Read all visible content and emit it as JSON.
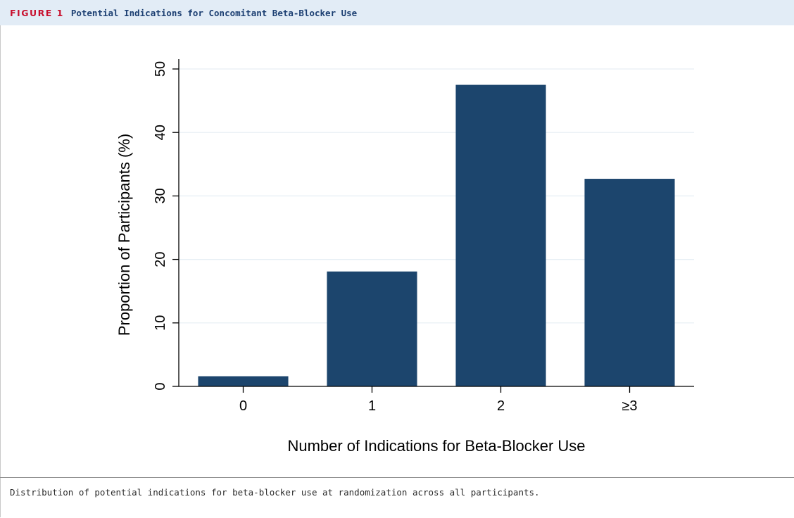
{
  "figure": {
    "label": "FIGURE 1",
    "title": "Potential Indications for Concomitant Beta-Blocker Use",
    "caption": "Distribution of potential indications for beta-blocker use at randomization across all participants."
  },
  "colors": {
    "header_bg": "#e2ecf6",
    "label_red": "#c8102e",
    "title_blue": "#1c3f72",
    "bar": "#1c456d",
    "grid": "#e6eef4"
  },
  "chart_data": {
    "type": "bar",
    "categories": [
      "0",
      "1",
      "2",
      "≥3"
    ],
    "values": [
      1.6,
      18.1,
      47.5,
      32.7
    ],
    "xlabel": "Number of Indications for Beta-Blocker Use",
    "ylabel": "Proportion of Participants (%)",
    "ylim": [
      0,
      50
    ],
    "yticks": [
      0,
      10,
      20,
      30,
      40,
      50
    ],
    "grid": true,
    "legend": "none"
  }
}
